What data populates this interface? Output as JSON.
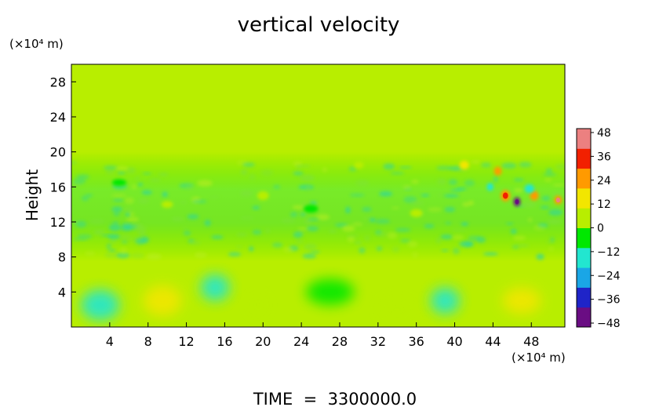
{
  "chart_data": {
    "type": "heatmap",
    "title": "vertical velocity",
    "ylabel": "Height",
    "y_unit_label": "(×10⁴ m)",
    "x_unit_label": "(×10⁴ m)",
    "footer": "TIME  =  3300000.0",
    "x_ticks": [
      "4",
      "8",
      "12",
      "16",
      "20",
      "24",
      "28",
      "32",
      "36",
      "40",
      "44",
      "48"
    ],
    "y_ticks": [
      "4",
      "8",
      "12",
      "16",
      "20",
      "24",
      "28"
    ],
    "xlim": [
      0,
      51.5
    ],
    "ylim": [
      0,
      30
    ],
    "colorbar": {
      "ticks": [
        "48",
        "36",
        "24",
        "12",
        "0",
        "−12",
        "−24",
        "−36",
        "−48"
      ],
      "range": [
        -48,
        48
      ],
      "colors": [
        "#6a0d83",
        "#1f24c8",
        "#1aa6e6",
        "#22e6d0",
        "#00e800",
        "#b8ee00",
        "#f2e600",
        "#ff9a00",
        "#f22000",
        "#ec8080"
      ]
    },
    "background_value": 0,
    "features": [
      {
        "x": 3,
        "y": 2.5,
        "w": 4,
        "h": 3.5,
        "value": -16
      },
      {
        "x": 9.5,
        "y": 3.0,
        "w": 4,
        "h": 3.5,
        "value": 10
      },
      {
        "x": 15,
        "y": 4.5,
        "w": 3,
        "h": 3,
        "value": -18
      },
      {
        "x": 19.5,
        "y": 2.5,
        "w": 2,
        "h": 2.5,
        "value": 8
      },
      {
        "x": 27,
        "y": 4.0,
        "w": 5,
        "h": 3,
        "value": -8
      },
      {
        "x": 34,
        "y": 2.0,
        "w": 4,
        "h": 3,
        "value": 6
      },
      {
        "x": 39,
        "y": 3.0,
        "w": 3,
        "h": 3,
        "value": -10
      },
      {
        "x": 47,
        "y": 3.0,
        "w": 4,
        "h": 3,
        "value": 14
      },
      {
        "x": 46.5,
        "y": 14.3,
        "w": 0.7,
        "h": 1.0,
        "value": -48
      },
      {
        "x": 45.3,
        "y": 15.0,
        "w": 1.0,
        "h": 1.3,
        "value": 24
      },
      {
        "x": 48.3,
        "y": 15.0,
        "w": 0.9,
        "h": 1.1,
        "value": 22
      },
      {
        "x": 50.8,
        "y": 14.5,
        "w": 0.8,
        "h": 1.0,
        "value": 28
      },
      {
        "x": 44.5,
        "y": 17.8,
        "w": 0.8,
        "h": 1.0,
        "value": 20
      },
      {
        "x": 43.7,
        "y": 16.0,
        "w": 0.7,
        "h": 0.9,
        "value": -16
      },
      {
        "x": 47.8,
        "y": 15.8,
        "w": 1.0,
        "h": 1.0,
        "value": -12
      },
      {
        "x": 41,
        "y": 18.5,
        "w": 1.0,
        "h": 1.0,
        "value": 12
      },
      {
        "x": 30,
        "y": 18.5,
        "w": 1.0,
        "h": 0.8,
        "value": 8
      },
      {
        "x": 20,
        "y": 15,
        "w": 1.2,
        "h": 1.0,
        "value": 8
      },
      {
        "x": 10,
        "y": 14,
        "w": 1.2,
        "h": 0.8,
        "value": 6
      },
      {
        "x": 36,
        "y": 13,
        "w": 1.3,
        "h": 0.9,
        "value": 6
      },
      {
        "x": 25,
        "y": 13.5,
        "w": 1.5,
        "h": 0.9,
        "value": -5
      },
      {
        "x": 5,
        "y": 16.5,
        "w": 1.5,
        "h": 0.8,
        "value": -4
      }
    ]
  }
}
